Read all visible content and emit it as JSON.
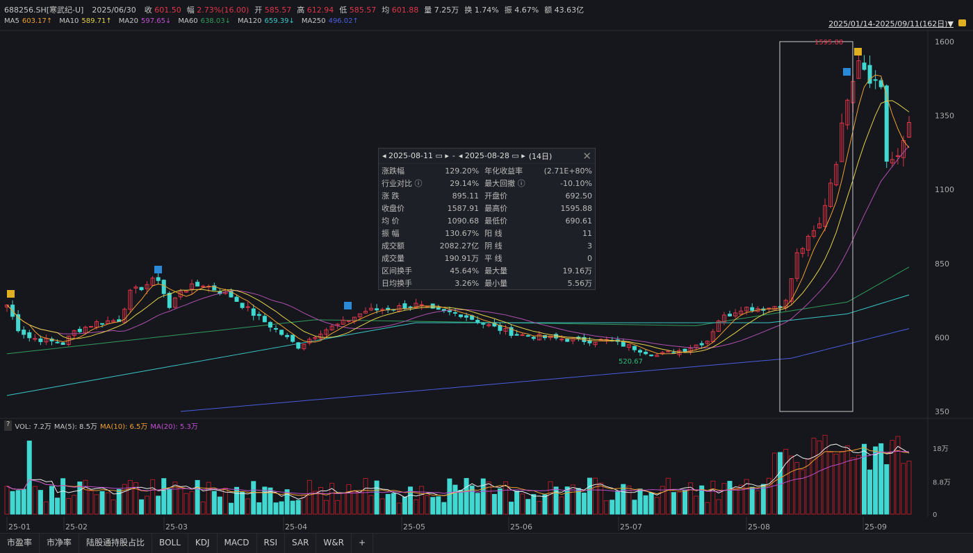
{
  "header": {
    "code": "688256.SH[寒武纪-U]",
    "date": "2025/06/30",
    "fields": [
      {
        "k": "收",
        "v": "601.50",
        "c": "red"
      },
      {
        "k": "幅",
        "v": "2.73%(16.00)",
        "c": "red"
      },
      {
        "k": "开",
        "v": "585.57",
        "c": "red"
      },
      {
        "k": "高",
        "v": "612.94",
        "c": "red"
      },
      {
        "k": "低",
        "v": "585.57",
        "c": "red"
      },
      {
        "k": "均",
        "v": "601.88",
        "c": "red"
      },
      {
        "k": "量",
        "v": "7.25万",
        "c": ""
      },
      {
        "k": "换",
        "v": "1.74%",
        "c": ""
      },
      {
        "k": "振",
        "v": "4.67%",
        "c": ""
      },
      {
        "k": "额",
        "v": "43.63亿",
        "c": ""
      }
    ],
    "ma": [
      {
        "k": "MA5",
        "v": "603.17↑",
        "c": "org"
      },
      {
        "k": "MA10",
        "v": "589.71↑",
        "c": "yel"
      },
      {
        "k": "MA20",
        "v": "597.65↓",
        "c": "pur"
      },
      {
        "k": "MA60",
        "v": "638.03↓",
        "c": "dgr"
      },
      {
        "k": "MA120",
        "v": "659.39↓",
        "c": "cyn"
      },
      {
        "k": "MA250",
        "v": "496.02↑",
        "c": "blu"
      }
    ],
    "range": "2025/01/14-2025/09/11(162日)▼"
  },
  "popup": {
    "start": "2025-08-11",
    "end": "2025-08-28",
    "days": "(14日)",
    "close": "✕",
    "rows": [
      [
        "涨跌幅",
        "129.20%",
        "red",
        "年化收益率",
        "(2.71E+80%",
        "red"
      ],
      [
        "行业对比 ⓘ",
        "29.14%",
        "red",
        "最大回撤 ⓘ",
        "-10.10%",
        "grn"
      ],
      [
        "涨 跌",
        "895.11",
        "red",
        "开盘价",
        "692.50",
        "red"
      ],
      [
        "收盘价",
        "1587.91",
        "red",
        "最高价",
        "1595.88",
        "red"
      ],
      [
        "均 价",
        "1090.68",
        "red",
        "最低价",
        "690.61",
        "red"
      ],
      [
        "振 幅",
        "130.67%",
        "red",
        "阳 线",
        "11",
        "red"
      ],
      [
        "成交额",
        "2082.27亿",
        "",
        "阴 线",
        "3",
        "grn"
      ],
      [
        "成交量",
        "190.91万",
        "",
        "平 线",
        "0",
        ""
      ],
      [
        "区间换手",
        "45.64%",
        "",
        "最大量",
        "19.16万",
        ""
      ],
      [
        "日均换手",
        "3.26%",
        "",
        "最小量",
        "5.56万",
        ""
      ]
    ]
  },
  "volume": {
    "help": "?",
    "vol": "VOL: 7.2万",
    "ma5": "MA(5): 8.5万",
    "ma10": "MA(10): 6.5万",
    "ma20": "MA(20): 5.3万"
  },
  "tabs": [
    "市盈率",
    "市净率",
    "陆股通持股占比",
    "BOLL",
    "KDJ",
    "MACD",
    "RSI",
    "SAR",
    "W&R",
    "+"
  ],
  "chart_data": {
    "type": "candlestick",
    "title": "688256.SH",
    "ylim": [
      350,
      1600
    ],
    "yticks": [
      "1600",
      "1350",
      "1100",
      "850",
      "600",
      "350"
    ],
    "vol_ticks": [
      "18万",
      "8.8万",
      "0"
    ],
    "vol_max": 22,
    "months": [
      "25-01",
      "25-02",
      "25-03",
      "25-04",
      "25-05",
      "25-06",
      "25-07",
      "25-08",
      "25-09"
    ],
    "n": 162,
    "close_keyframes": [
      [
        0,
        710
      ],
      [
        2,
        630
      ],
      [
        4,
        600
      ],
      [
        10,
        580
      ],
      [
        12,
        620
      ],
      [
        16,
        650
      ],
      [
        20,
        660
      ],
      [
        22,
        750
      ],
      [
        27,
        800
      ],
      [
        29,
        700
      ],
      [
        31,
        760
      ],
      [
        35,
        780
      ],
      [
        40,
        740
      ],
      [
        44,
        680
      ],
      [
        47,
        640
      ],
      [
        52,
        570
      ],
      [
        56,
        620
      ],
      [
        60,
        650
      ],
      [
        64,
        690
      ],
      [
        69,
        700
      ],
      [
        73,
        710
      ],
      [
        76,
        690
      ],
      [
        81,
        680
      ],
      [
        86,
        640
      ],
      [
        91,
        610
      ],
      [
        96,
        600
      ],
      [
        102,
        590
      ],
      [
        107,
        590
      ],
      [
        111,
        570
      ],
      [
        116,
        540
      ],
      [
        121,
        560
      ],
      [
        125,
        590
      ],
      [
        127,
        660
      ],
      [
        131,
        700
      ],
      [
        136,
        700
      ],
      [
        139,
        720
      ],
      [
        141,
        880
      ],
      [
        145,
        980
      ],
      [
        148,
        1200
      ],
      [
        150,
        1420
      ],
      [
        152,
        1550
      ],
      [
        154,
        1480
      ],
      [
        156,
        1450
      ],
      [
        157,
        1200
      ],
      [
        159,
        1200
      ],
      [
        161,
        1330
      ]
    ],
    "ma60": [
      [
        0,
        545
      ],
      [
        55,
        660
      ],
      [
        123,
        640
      ],
      [
        150,
        720
      ],
      [
        161,
        838
      ]
    ],
    "ma120": [
      [
        0,
        404
      ],
      [
        73,
        650
      ],
      [
        136,
        650
      ],
      [
        150,
        680
      ],
      [
        161,
        744
      ]
    ],
    "ma250": [
      [
        31,
        350
      ],
      [
        140,
        530
      ],
      [
        161,
        630
      ]
    ],
    "annotations": {
      "high": "1595.88",
      "low": "520.67"
    }
  }
}
